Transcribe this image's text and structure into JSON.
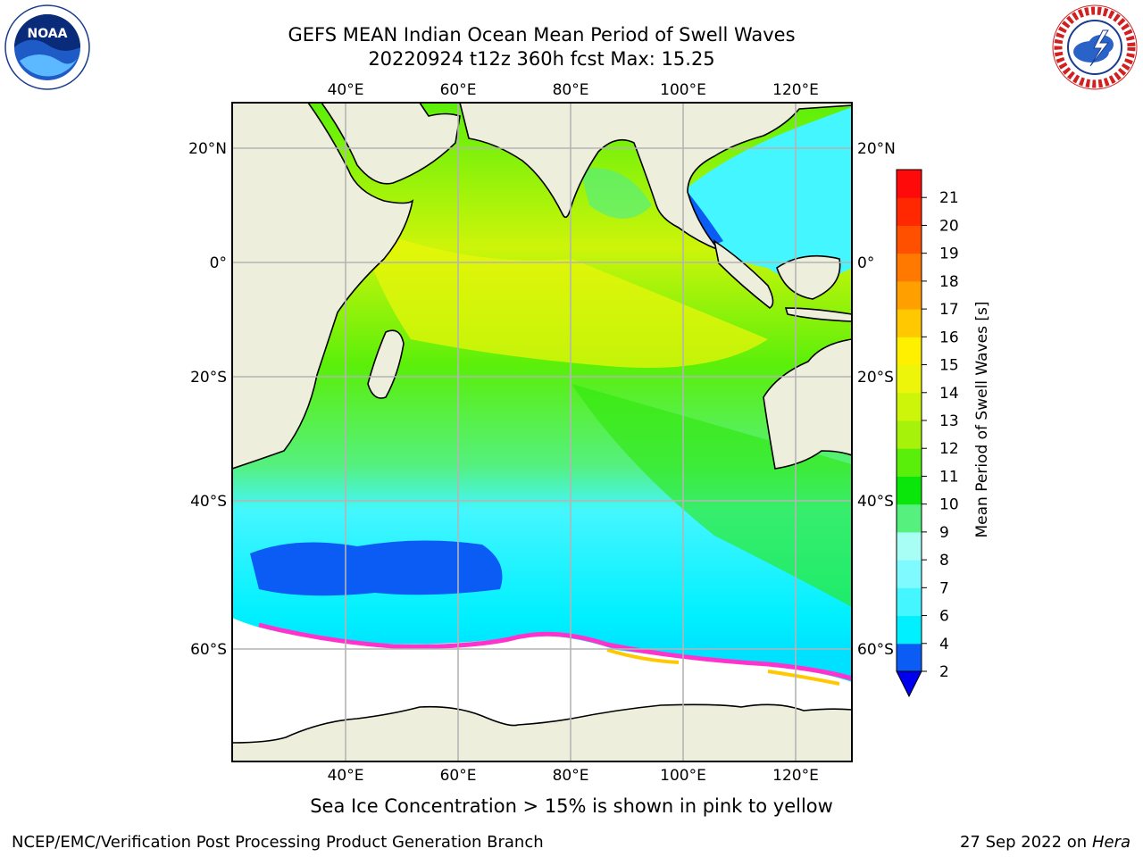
{
  "title_line1": "GEFS MEAN Indian Ocean Mean Period of Swell Waves",
  "title_line2": "20220924 t12z 360h fcst   Max: 15.25",
  "footnote": "Sea Ice Concentration > 15% is shown in pink to yellow",
  "footer_left": "NCEP/EMC/Verification Post Processing Product Generation Branch",
  "footer_right_date": "27 Sep 2022 on",
  "footer_right_host": "Hera",
  "logos": {
    "left": "noaa-logo",
    "right": "national-weather-service-logo",
    "left_text": "NOAA",
    "right_ring_text": "NATIONAL WEATHER SERVICE"
  },
  "map": {
    "lon_labels": [
      "40°E",
      "60°E",
      "80°E",
      "100°E",
      "120°E"
    ],
    "lat_labels": [
      "20°N",
      "0°",
      "20°S",
      "40°S",
      "60°S"
    ]
  },
  "colorbar": {
    "label": "Mean Period of Swell Waves [s]",
    "ticks": [
      "2",
      "4",
      "6",
      "7",
      "8",
      "9",
      "10",
      "11",
      "12",
      "13",
      "14",
      "15",
      "16",
      "17",
      "18",
      "19",
      "20",
      "21"
    ],
    "colors": [
      "#0a5cf5",
      "#00f0ff",
      "#44f6ff",
      "#7ffaff",
      "#a8fdf4",
      "#55f07e",
      "#0ae60a",
      "#5aef0a",
      "#a6f20a",
      "#cdf50a",
      "#edf50a",
      "#fff000",
      "#ffc800",
      "#ffa000",
      "#ff7800",
      "#ff5000",
      "#ff2800",
      "#ff0a0a"
    ],
    "extend_color": "#0000ee"
  }
}
